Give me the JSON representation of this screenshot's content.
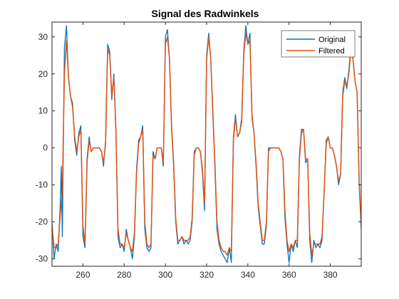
{
  "chart_data": {
    "type": "line",
    "title": "Signal des Radwinkels",
    "xlabel": "",
    "ylabel": "",
    "xlim": [
      245,
      395
    ],
    "ylim": [
      -32,
      34
    ],
    "xticks": [
      260,
      280,
      300,
      320,
      340,
      360,
      380
    ],
    "yticks": [
      30,
      20,
      10,
      0,
      -10,
      -20,
      -30
    ],
    "grid": false,
    "legend_position": "top-right",
    "colors": {
      "original": "#0072bd",
      "filtered": "#d95319",
      "axes": "#262626"
    },
    "series": [
      {
        "name": "Original",
        "x": [
          245,
          246,
          247,
          248,
          249,
          249.5,
          250,
          251,
          252,
          253,
          254,
          255,
          256,
          257,
          258,
          259,
          260,
          261,
          262,
          263,
          264,
          265,
          266,
          267,
          268,
          269,
          270,
          271,
          272,
          273,
          274,
          275,
          276,
          277,
          278,
          279,
          280,
          281,
          282,
          283,
          284,
          285,
          286,
          287,
          288,
          289,
          290,
          291,
          292,
          293,
          294,
          295,
          296,
          297,
          298,
          299,
          300,
          301,
          302,
          303,
          304,
          305,
          306,
          307,
          308,
          309,
          310,
          311,
          312,
          313,
          314,
          315,
          316,
          317,
          318,
          319,
          320,
          321,
          322,
          323,
          324,
          325,
          326,
          327,
          328,
          329,
          330,
          331,
          332,
          333,
          334,
          335,
          336,
          337,
          338,
          339,
          340,
          341,
          342,
          343,
          344,
          345,
          346,
          347,
          348,
          349,
          350,
          351,
          352,
          353,
          354,
          355,
          356,
          357,
          358,
          359,
          360,
          361,
          362,
          363,
          364,
          365,
          366,
          367,
          368,
          369,
          370,
          371,
          372,
          373,
          374,
          375,
          376,
          377,
          378,
          379,
          380,
          381,
          382,
          383,
          384,
          385,
          386,
          387,
          388,
          389,
          390,
          391,
          392,
          393,
          394,
          395
        ],
        "y": [
          -20,
          -30,
          -26,
          -28,
          -15,
          -5,
          -24,
          27,
          33,
          19,
          14,
          12,
          2,
          -2,
          4,
          6,
          -24,
          -27,
          -3,
          3,
          -1,
          0,
          0,
          0,
          0,
          -1,
          -5,
          2,
          28,
          26,
          13,
          20,
          4,
          -24,
          -27,
          -26,
          -28,
          -22,
          -25,
          -27,
          -30,
          -24,
          -6,
          2,
          3,
          6,
          -22,
          -27,
          -28,
          -27,
          -1,
          -3,
          0,
          0,
          0,
          -5,
          30,
          32,
          24,
          5,
          -5,
          -20,
          -26,
          -25,
          -24,
          -26,
          -25,
          -26,
          -25,
          -20,
          -1,
          0,
          0,
          -1,
          -7,
          -17,
          25,
          31,
          24,
          9,
          -5,
          -22,
          -26,
          -28,
          -29,
          -30,
          -31,
          -27,
          -31,
          3,
          9,
          3,
          4,
          8,
          26,
          33,
          28,
          31,
          8,
          4,
          -5,
          -16,
          -21,
          -26,
          -26,
          -21,
          0,
          0,
          0,
          0,
          0,
          0,
          -1,
          -3,
          -19,
          -26,
          -31,
          -26,
          -28,
          -25,
          -27,
          -2,
          5,
          5,
          -4,
          -3,
          -25,
          -31,
          -25,
          -27,
          -26,
          -27,
          -25,
          -12,
          2,
          3,
          0,
          0,
          -2,
          -5,
          -10,
          -7,
          15,
          19,
          16,
          21,
          27,
          24,
          18,
          15,
          -10,
          -22
        ]
      },
      {
        "name": "Filtered",
        "x": [
          245,
          246,
          247,
          248,
          249,
          250,
          251,
          252,
          253,
          254,
          255,
          256,
          257,
          258,
          259,
          260,
          261,
          262,
          263,
          264,
          265,
          266,
          267,
          268,
          269,
          270,
          271,
          272,
          273,
          274,
          275,
          276,
          277,
          278,
          279,
          280,
          281,
          282,
          283,
          284,
          285,
          286,
          287,
          288,
          289,
          290,
          291,
          292,
          293,
          294,
          295,
          296,
          297,
          298,
          299,
          300,
          301,
          302,
          303,
          304,
          305,
          306,
          307,
          308,
          309,
          310,
          311,
          312,
          313,
          314,
          315,
          316,
          317,
          318,
          319,
          320,
          321,
          322,
          323,
          324,
          325,
          326,
          327,
          328,
          329,
          330,
          331,
          332,
          333,
          334,
          335,
          336,
          337,
          338,
          339,
          340,
          341,
          342,
          343,
          344,
          345,
          346,
          347,
          348,
          349,
          350,
          351,
          352,
          353,
          354,
          355,
          356,
          357,
          358,
          359,
          360,
          361,
          362,
          363,
          364,
          365,
          366,
          367,
          368,
          369,
          370,
          371,
          372,
          373,
          374,
          375,
          376,
          377,
          378,
          379,
          380,
          381,
          382,
          383,
          384,
          385,
          386,
          387,
          388,
          389,
          390,
          391,
          392,
          393,
          394,
          395
        ],
        "y": [
          -21,
          -27,
          -27,
          -26,
          -18,
          -12,
          20,
          29,
          19,
          14,
          11,
          3,
          -1,
          3,
          5,
          -21,
          -26,
          -4,
          2,
          -1,
          0,
          0,
          0,
          0,
          -1,
          -4,
          1,
          27,
          25,
          14,
          19,
          5,
          -22,
          -26,
          -26,
          -27,
          -23,
          -25,
          -27,
          -28,
          -23,
          -7,
          1,
          3,
          5,
          -20,
          -26,
          -27,
          -26,
          -2,
          -3,
          0,
          0,
          0,
          -4,
          28,
          30,
          24,
          6,
          -4,
          -19,
          -25,
          -25,
          -24,
          -25,
          -25,
          -25,
          -24,
          -19,
          -2,
          0,
          0,
          -1,
          -6,
          -15,
          24,
          30,
          24,
          10,
          -4,
          -20,
          -25,
          -27,
          -28,
          -28,
          -29,
          -27,
          -28,
          2,
          8,
          3,
          4,
          7,
          25,
          31,
          28,
          29,
          9,
          4,
          -4,
          -15,
          -20,
          -25,
          -25,
          -20,
          -1,
          0,
          0,
          0,
          0,
          0,
          -1,
          -3,
          -17,
          -25,
          -28,
          -26,
          -27,
          -25,
          -25,
          -3,
          4,
          5,
          -3,
          -3,
          -23,
          -29,
          -26,
          -26,
          -26,
          -26,
          -24,
          -12,
          1,
          3,
          0,
          0,
          -2,
          -5,
          -9,
          -7,
          14,
          18,
          17,
          20,
          26,
          24,
          18,
          15,
          -9,
          -21
        ]
      }
    ]
  }
}
